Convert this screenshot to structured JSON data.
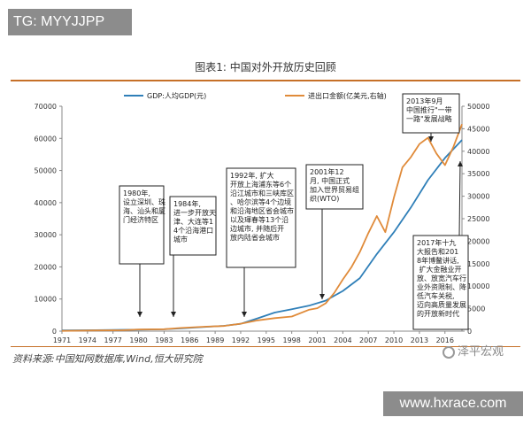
{
  "watermark_tg": "TG: MYYJJPP",
  "watermark_site": "www.hxrace.com",
  "watermark_logo": "泽平宏观",
  "chart_data": {
    "type": "line",
    "title": "图表1:   中国对外开放历史回顾",
    "source": "资料来源:中国知网数据库,Wind,恒大研究院",
    "x_ticks": [
      "1971",
      "1974",
      "1977",
      "1980",
      "1983",
      "1986",
      "1989",
      "1992",
      "1995",
      "1998",
      "2001",
      "2004",
      "2007",
      "2010",
      "2013",
      "2016"
    ],
    "xlim": [
      1971,
      2018
    ],
    "y_left_ticks": [
      "0",
      "10000",
      "20000",
      "30000",
      "40000",
      "50000",
      "60000",
      "70000"
    ],
    "ylim_left": [
      0,
      70000
    ],
    "y_right_ticks": [
      "0",
      "5000",
      "10000",
      "15000",
      "20000",
      "25000",
      "30000",
      "35000",
      "40000",
      "45000",
      "50000"
    ],
    "ylim_right": [
      0,
      50000
    ],
    "series": [
      {
        "name": "GDP:人均GDP(元)",
        "axis": "left",
        "color": "#2f7fb8",
        "x": [
          1971,
          1975,
          1980,
          1983,
          1985,
          1988,
          1990,
          1992,
          1994,
          1996,
          1998,
          2000,
          2002,
          2004,
          2006,
          2008,
          2010,
          2012,
          2014,
          2016,
          2018
        ],
        "y": [
          250,
          300,
          470,
          580,
          860,
          1360,
          1640,
          2300,
          4000,
          5800,
          6800,
          7900,
          9500,
          12500,
          16500,
          24000,
          30800,
          38500,
          47000,
          53900,
          59500
        ]
      },
      {
        "name": "进出口金额(亿美元,右轴)",
        "axis": "right",
        "color": "#e08b3a",
        "x": [
          1971,
          1975,
          1978,
          1980,
          1983,
          1985,
          1988,
          1990,
          1992,
          1994,
          1996,
          1998,
          2000,
          2001,
          2002,
          2003,
          2004,
          2005,
          2006,
          2007,
          2008,
          2009,
          2010,
          2011,
          2012,
          2013,
          2014,
          2015,
          2016,
          2017,
          2018
        ],
        "y": [
          50,
          150,
          200,
          380,
          440,
          700,
          1000,
          1150,
          1650,
          2400,
          2900,
          3250,
          4740,
          5100,
          6200,
          8500,
          11500,
          14200,
          17600,
          21800,
          25600,
          22000,
          29700,
          36400,
          38700,
          41600,
          43000,
          39500,
          36900,
          41000,
          46000
        ]
      }
    ],
    "annotations": [
      {
        "year": 1980,
        "text": "1980年,设立深圳、珠海、汕头和厦门经济特区"
      },
      {
        "year": 1984,
        "text": "1984年,进一步开放天津、大连等14个沿海港口城市"
      },
      {
        "year": 1992,
        "text": "1992年, 扩大开放上海浦东等6个沿江城市和三峡库区、哈尔滨等4个边境和沿海地区省会城市以及琿春等13个沿边城市, 并随后开放内陆省会城市"
      },
      {
        "year": 2001,
        "text": "2001年12月, 中国正式加入世界贸易组织(WTO)"
      },
      {
        "year": 2013,
        "text": "2013年9月中国推行\"一带一路\"发展战略"
      },
      {
        "year": 2017,
        "text": "2017年十九大报告和2018年博鳌讲话, 扩大金融业开放、放宽汽车行业外资限制、降低汽车关税, 迈向高质量发展的开放新时代"
      }
    ]
  }
}
